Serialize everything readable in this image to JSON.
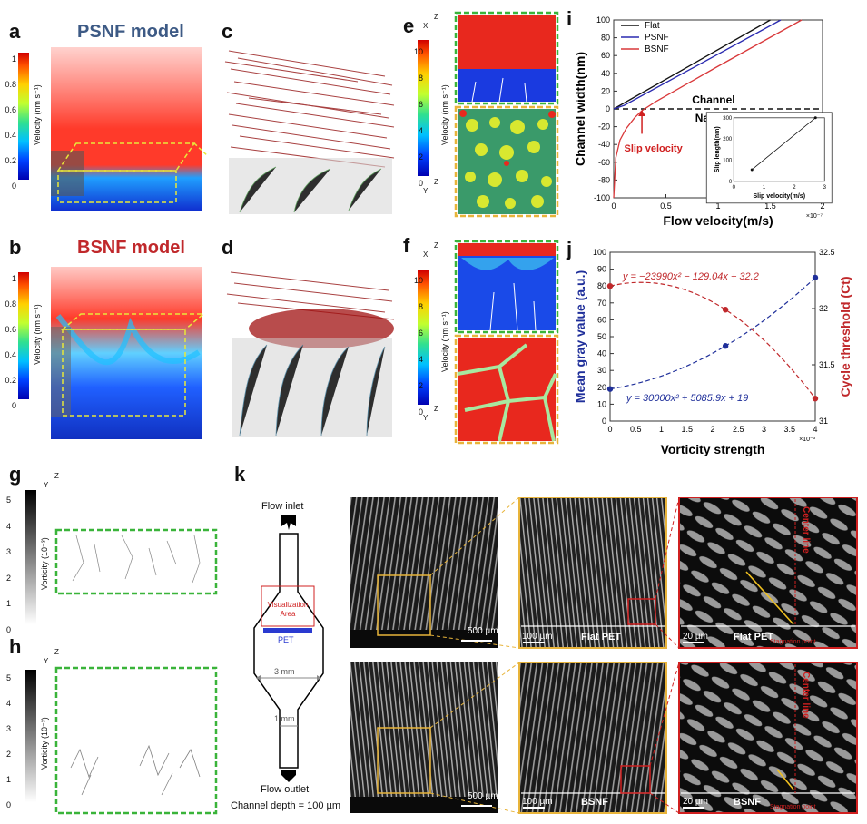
{
  "panel_labels": {
    "a": "a",
    "b": "b",
    "c": "c",
    "d": "d",
    "e": "e",
    "f": "f",
    "g": "g",
    "h": "h",
    "i": "i",
    "j": "j",
    "k": "k"
  },
  "panel_a": {
    "title": "PSNF model",
    "colorbar_label": "Velocity (nm s⁻¹)",
    "ticks": [
      "1",
      "0.8",
      "0.6",
      "0.4",
      "0.2",
      "0"
    ]
  },
  "panel_b": {
    "title": "BSNF model",
    "colorbar_label": "Velocity (nm s⁻¹)",
    "ticks": [
      "1",
      "0.8",
      "0.6",
      "0.4",
      "0.2",
      "0"
    ]
  },
  "panel_e": {
    "colorbar_label": "Velocity (nm s⁻¹)",
    "ticks": [
      "10",
      "8",
      "6",
      "4",
      "2",
      "0"
    ],
    "axis_top": [
      "Z",
      "X"
    ],
    "axis_bottom": [
      "Z",
      "Y"
    ]
  },
  "panel_f": {
    "colorbar_label": "Velocity (nm s⁻¹)",
    "ticks": [
      "10",
      "8",
      "6",
      "4",
      "2",
      "0"
    ],
    "axis_top": [
      "Z",
      "X"
    ],
    "axis_bottom": [
      "Z",
      "Y"
    ]
  },
  "panel_g": {
    "colorbar_label": "Vorticity (10⁻³)",
    "ticks": [
      "5",
      "4",
      "3",
      "2",
      "1",
      "0"
    ],
    "axis": [
      "Z",
      "Y"
    ]
  },
  "panel_h": {
    "colorbar_label": "Vorticity (10⁻³)",
    "ticks": [
      "5",
      "4",
      "3",
      "2",
      "1",
      "0"
    ],
    "axis": [
      "Z",
      "Y"
    ]
  },
  "panel_k": {
    "flow_inlet": "Flow inlet",
    "flow_outlet": "Flow outlet",
    "visualization_area": "Visualization Area",
    "pet": "PET",
    "width_3mm": "3 mm",
    "width_1mm": "1 mm",
    "channel_depth": "Channel depth = 100 µm",
    "scale_500": "500 µm",
    "scale_100": "100 µm",
    "scale_20": "20 µm",
    "flat_pet": "Flat PET",
    "bsnf": "BSNF",
    "center_line": "Center line",
    "stagnation_point": "Stagnation point"
  },
  "chart_data": [
    {
      "id": "panel-i",
      "type": "line",
      "xlabel": "Flow velocity(m/s)",
      "ylabel": "Channel width(nm)",
      "x_multiplier": "×10⁻⁷",
      "xlim": [
        0,
        2
      ],
      "ylim": [
        -100,
        100
      ],
      "xticks": [
        "0",
        "0.5",
        "1",
        "1.5",
        "2"
      ],
      "yticks": [
        "100",
        "80",
        "60",
        "40",
        "20",
        "0",
        "-20",
        "-40",
        "-60",
        "-80",
        "-100"
      ],
      "series": [
        {
          "name": "Flat",
          "color": "#111111",
          "points": [
            [
              0,
              0
            ],
            [
              1.5,
              100
            ]
          ]
        },
        {
          "name": "PSNF",
          "color": "#2a2ab0",
          "points": [
            [
              0,
              0
            ],
            [
              0.1,
              4
            ],
            [
              1.6,
              100
            ]
          ]
        },
        {
          "name": "BSNF",
          "color": "#d9383a",
          "points": [
            [
              0,
              -100
            ],
            [
              0.02,
              -55
            ],
            [
              0.06,
              -35
            ],
            [
              0.12,
              -22
            ],
            [
              0.2,
              -10
            ],
            [
              0.27,
              -2
            ],
            [
              0.4,
              8
            ],
            [
              1.0,
              48
            ],
            [
              1.8,
              100
            ]
          ]
        }
      ],
      "hline": {
        "y": 0,
        "style": "dashed"
      },
      "annotations": {
        "channel": "Channel",
        "nanopore": "Nanopore",
        "slip_velocity": "Slip velocity"
      },
      "inset": {
        "xlabel": "Slip velocity(m/s)",
        "ylabel": "Slip length(nm)",
        "xticks": [
          "0",
          "1",
          "2",
          "3"
        ],
        "yticks": [
          "0",
          "100",
          "200",
          "300"
        ],
        "points": [
          [
            0.6,
            55
          ],
          [
            2.7,
            300
          ]
        ]
      }
    },
    {
      "id": "panel-j",
      "type": "scatter",
      "xlabel": "Vorticity strength",
      "ylabel": "Mean gray value (a.u.)",
      "y2label": "Cycle threshold (Ct)",
      "x_multiplier": "×10⁻³",
      "xlim": [
        0,
        4
      ],
      "ylim": [
        0,
        100
      ],
      "y2lim": [
        31,
        32.5
      ],
      "xticks": [
        "0",
        "0.5",
        "1",
        "1.5",
        "2",
        "2.5",
        "3",
        "3.5",
        "4"
      ],
      "yticks": [
        "0",
        "10",
        "20",
        "30",
        "40",
        "50",
        "60",
        "70",
        "80",
        "90",
        "100"
      ],
      "y2ticks": [
        "31",
        "31.5",
        "32",
        "32.5"
      ],
      "equation_red": "y = −23990x² − 129.04x + 32.2",
      "equation_blue": "y = 30000x² + 5085.9x + 19",
      "series": [
        {
          "axis": "left",
          "color": "#1f2f9a",
          "x": [
            0,
            2.25,
            4
          ],
          "y": [
            19,
            44.5,
            85
          ]
        },
        {
          "axis": "right",
          "color": "#c0282b",
          "x": [
            0,
            2.25,
            4
          ],
          "y": [
            32.2,
            31.99,
            31.2
          ]
        }
      ]
    }
  ]
}
